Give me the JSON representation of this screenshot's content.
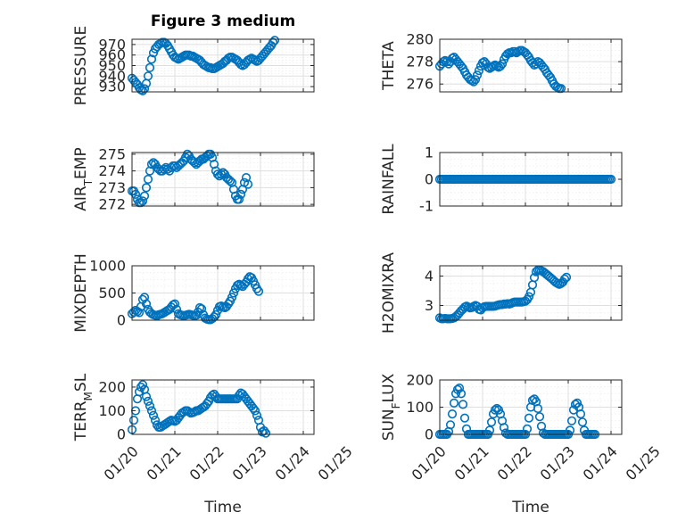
{
  "figure": {
    "title": "Figure 3 medium",
    "xlabel": "Time",
    "marker_color": "#0072bd"
  },
  "chart_data": [
    {
      "id": "pressure",
      "type": "scatter",
      "ylabel": "PRESSURE",
      "xlim": [
        "01/20",
        "01/24 06:00"
      ],
      "ylim": [
        925,
        975
      ],
      "yticks": [
        930,
        940,
        950,
        960,
        970
      ],
      "xticks": [
        "01/20",
        "01/21",
        "01/22",
        "01/23",
        "01/24",
        "01/25"
      ],
      "show_xticklabels": false,
      "series": [
        {
          "x_start": "01/20",
          "x_step_hours": 1,
          "values": [
            938,
            936,
            934,
            932,
            929,
            927,
            926,
            928,
            933,
            940,
            948,
            956,
            962,
            966,
            968,
            970,
            971,
            972,
            972,
            971,
            969,
            966,
            963,
            960,
            958,
            957,
            956,
            957,
            958,
            959,
            960,
            960,
            960,
            959,
            959,
            958,
            957,
            956,
            955,
            953,
            951,
            950,
            949,
            948,
            948,
            947,
            947,
            948,
            949,
            950,
            951,
            952,
            954,
            955,
            957,
            958,
            958,
            957,
            956,
            955,
            953,
            951,
            950,
            951,
            953,
            955,
            956,
            957,
            956,
            955,
            954,
            955,
            957,
            959,
            961,
            963,
            965,
            967,
            969,
            972,
            974
          ]
        }
      ]
    },
    {
      "id": "theta",
      "type": "scatter",
      "ylabel": "THETA",
      "xlim": [
        "01/20",
        "01/24 06:00"
      ],
      "ylim": [
        275.3,
        280
      ],
      "yticks": [
        276,
        278,
        280
      ],
      "xticks": [
        "01/20",
        "01/21",
        "01/22",
        "01/23",
        "01/24",
        "01/25"
      ],
      "show_xticklabels": false,
      "series": [
        {
          "x_start": "01/20",
          "x_step_hours": 1,
          "values": [
            277.6,
            277.8,
            278.0,
            278.1,
            278.0,
            277.8,
            278.0,
            278.3,
            278.4,
            278.2,
            278.0,
            277.8,
            277.6,
            277.4,
            277.1,
            276.8,
            276.6,
            276.4,
            276.3,
            276.2,
            276.4,
            276.8,
            277.2,
            277.6,
            277.9,
            278.0,
            277.8,
            277.5,
            277.4,
            277.5,
            277.6,
            277.7,
            277.6,
            277.5,
            277.6,
            277.8,
            278.2,
            278.5,
            278.7,
            278.8,
            278.8,
            278.9,
            278.9,
            278.8,
            278.9,
            279.0,
            279.0,
            278.9,
            278.8,
            278.6,
            278.4,
            278.1,
            277.9,
            277.7,
            277.8,
            278.0,
            277.9,
            277.7,
            277.5,
            277.3,
            277.0,
            276.8,
            276.6,
            276.3,
            276.0,
            275.8,
            275.7,
            275.6,
            275.6
          ]
        }
      ]
    },
    {
      "id": "air-temp",
      "type": "scatter",
      "ylabel_main": "AIR",
      "ylabel_sub": "T",
      "ylabel_tail": "EMP",
      "xlim": [
        "01/20",
        "01/24 06:00"
      ],
      "ylim": [
        271.9,
        275.1
      ],
      "yticks": [
        272,
        273,
        274,
        275
      ],
      "xticks": [
        "01/20",
        "01/21",
        "01/22",
        "01/23",
        "01/24",
        "01/25"
      ],
      "show_xticklabels": false,
      "series": [
        {
          "x_start": "01/20",
          "x_step_hours": 1,
          "values": [
            272.8,
            272.8,
            272.6,
            272.3,
            272.1,
            272.1,
            272.2,
            272.5,
            273.0,
            273.5,
            274.0,
            274.4,
            274.5,
            274.4,
            274.2,
            274.1,
            274.0,
            274.0,
            274.1,
            274.2,
            274.1,
            274.0,
            274.2,
            274.3,
            274.3,
            274.2,
            274.3,
            274.4,
            274.5,
            274.6,
            274.8,
            275.0,
            274.9,
            274.7,
            274.6,
            274.5,
            274.4,
            274.5,
            274.6,
            274.7,
            274.7,
            274.8,
            274.9,
            275.0,
            275.0,
            274.8,
            274.4,
            274.0,
            273.8,
            273.7,
            273.8,
            273.9,
            273.8,
            273.6,
            273.5,
            273.4,
            273.3,
            272.9,
            272.5,
            272.3,
            272.3,
            272.6,
            272.9,
            273.3,
            273.6,
            273.2
          ]
        }
      ]
    },
    {
      "id": "rainfall",
      "type": "scatter",
      "ylabel": "RAINFALL",
      "xlim": [
        "01/20",
        "01/24 06:00"
      ],
      "ylim": [
        -1,
        1
      ],
      "yticks": [
        -1,
        0,
        1
      ],
      "xticks": [
        "01/20",
        "01/21",
        "01/22",
        "01/23",
        "01/24",
        "01/25"
      ],
      "show_xticklabels": false,
      "series": [
        {
          "x_start": "01/20",
          "x_step_hours": 1,
          "constant": 0,
          "count": 97
        }
      ]
    },
    {
      "id": "mixdepth",
      "type": "scatter",
      "ylabel": "MIXDEPTH",
      "xlim": [
        "01/20",
        "01/24 06:00"
      ],
      "ylim": [
        0,
        1000
      ],
      "yticks": [
        0,
        500,
        1000
      ],
      "xticks": [
        "01/20",
        "01/21",
        "01/22",
        "01/23",
        "01/24",
        "01/25"
      ],
      "show_xticklabels": false,
      "series": [
        {
          "x_start": "01/20",
          "x_step_hours": 1,
          "values": [
            120,
            150,
            180,
            160,
            140,
            250,
            380,
            420,
            300,
            200,
            150,
            120,
            100,
            90,
            80,
            100,
            110,
            120,
            140,
            160,
            180,
            200,
            240,
            280,
            300,
            200,
            120,
            100,
            90,
            80,
            90,
            100,
            110,
            100,
            90,
            80,
            90,
            150,
            230,
            210,
            100,
            40,
            20,
            10,
            10,
            30,
            60,
            100,
            180,
            250,
            260,
            240,
            230,
            250,
            300,
            350,
            420,
            500,
            580,
            640,
            660,
            640,
            620,
            660,
            700,
            760,
            800,
            780,
            720,
            650,
            580,
            530
          ]
        }
      ]
    },
    {
      "id": "h2omixra",
      "type": "scatter",
      "ylabel": "H2OMIXRA",
      "xlim": [
        "01/20",
        "01/24 06:00"
      ],
      "ylim": [
        2.5,
        4.35
      ],
      "yticks": [
        3,
        4
      ],
      "xticks": [
        "01/20",
        "01/21",
        "01/22",
        "01/23",
        "01/24",
        "01/25"
      ],
      "show_xticklabels": false,
      "series": [
        {
          "x_start": "01/20",
          "x_step_hours": 1,
          "values": [
            2.58,
            2.55,
            2.55,
            2.56,
            2.55,
            2.55,
            2.55,
            2.56,
            2.58,
            2.62,
            2.68,
            2.75,
            2.82,
            2.88,
            2.95,
            2.98,
            2.95,
            2.92,
            2.93,
            2.97,
            3.0,
            2.97,
            2.87,
            2.85,
            2.92,
            2.96,
            2.97,
            2.97,
            2.97,
            2.97,
            2.97,
            2.98,
            3.0,
            3.02,
            3.03,
            3.03,
            3.05,
            3.05,
            3.06,
            3.05,
            3.07,
            3.1,
            3.12,
            3.12,
            3.12,
            3.12,
            3.12,
            3.13,
            3.15,
            3.2,
            3.3,
            3.45,
            3.7,
            3.95,
            4.15,
            4.2,
            4.2,
            4.18,
            4.15,
            4.1,
            4.05,
            4.0,
            3.95,
            3.9,
            3.84,
            3.79,
            3.75,
            3.72,
            3.75,
            3.8,
            3.9,
            3.96
          ]
        }
      ]
    },
    {
      "id": "terr-msl",
      "type": "scatter",
      "ylabel_main": "TERR",
      "ylabel_sub": "M",
      "ylabel_tail": "SL",
      "xlim": [
        "01/20",
        "01/24 06:00"
      ],
      "ylim": [
        0,
        230
      ],
      "yticks": [
        0,
        100,
        200
      ],
      "xticks": [
        "01/20",
        "01/21",
        "01/22",
        "01/23",
        "01/24",
        "01/25"
      ],
      "show_xticklabels": true,
      "series": [
        {
          "x_start": "01/20",
          "x_step_hours": 1,
          "values": [
            20,
            60,
            100,
            150,
            180,
            200,
            210,
            190,
            160,
            140,
            120,
            100,
            80,
            60,
            40,
            30,
            30,
            35,
            40,
            45,
            50,
            55,
            60,
            58,
            55,
            60,
            70,
            80,
            90,
            95,
            100,
            100,
            95,
            90,
            92,
            95,
            100,
            100,
            105,
            110,
            115,
            120,
            130,
            140,
            155,
            165,
            170,
            160,
            150,
            150,
            150,
            150,
            150,
            150,
            150,
            150,
            150,
            150,
            150,
            150,
            165,
            175,
            170,
            160,
            150,
            140,
            130,
            120,
            110,
            100,
            80,
            60,
            30,
            10,
            15,
            5
          ]
        }
      ]
    },
    {
      "id": "sun-flux",
      "type": "scatter",
      "ylabel_main": "SUN",
      "ylabel_sub": "F",
      "ylabel_tail": "LUX",
      "xlim": [
        "01/20",
        "01/24 06:00"
      ],
      "ylim": [
        0,
        200
      ],
      "yticks": [
        0,
        100,
        200
      ],
      "xticks": [
        "01/20",
        "01/21",
        "01/22",
        "01/23",
        "01/24",
        "01/25"
      ],
      "show_xticklabels": true,
      "series": [
        {
          "x_start": "01/20",
          "x_step_hours": 1,
          "values": [
            0,
            0,
            0,
            0,
            0,
            10,
            35,
            75,
            115,
            150,
            165,
            170,
            150,
            110,
            60,
            20,
            0,
            0,
            0,
            0,
            0,
            0,
            0,
            0,
            0,
            0,
            0,
            0,
            15,
            45,
            75,
            90,
            95,
            90,
            75,
            50,
            25,
            5,
            0,
            0,
            0,
            0,
            0,
            0,
            0,
            0,
            0,
            0,
            0,
            20,
            60,
            100,
            125,
            130,
            120,
            95,
            65,
            30,
            5,
            0,
            0,
            0,
            0,
            0,
            0,
            0,
            0,
            0,
            0,
            0,
            0,
            0,
            0,
            15,
            50,
            90,
            110,
            115,
            100,
            75,
            45,
            15,
            0,
            0,
            0,
            0,
            0,
            0
          ]
        }
      ]
    }
  ]
}
